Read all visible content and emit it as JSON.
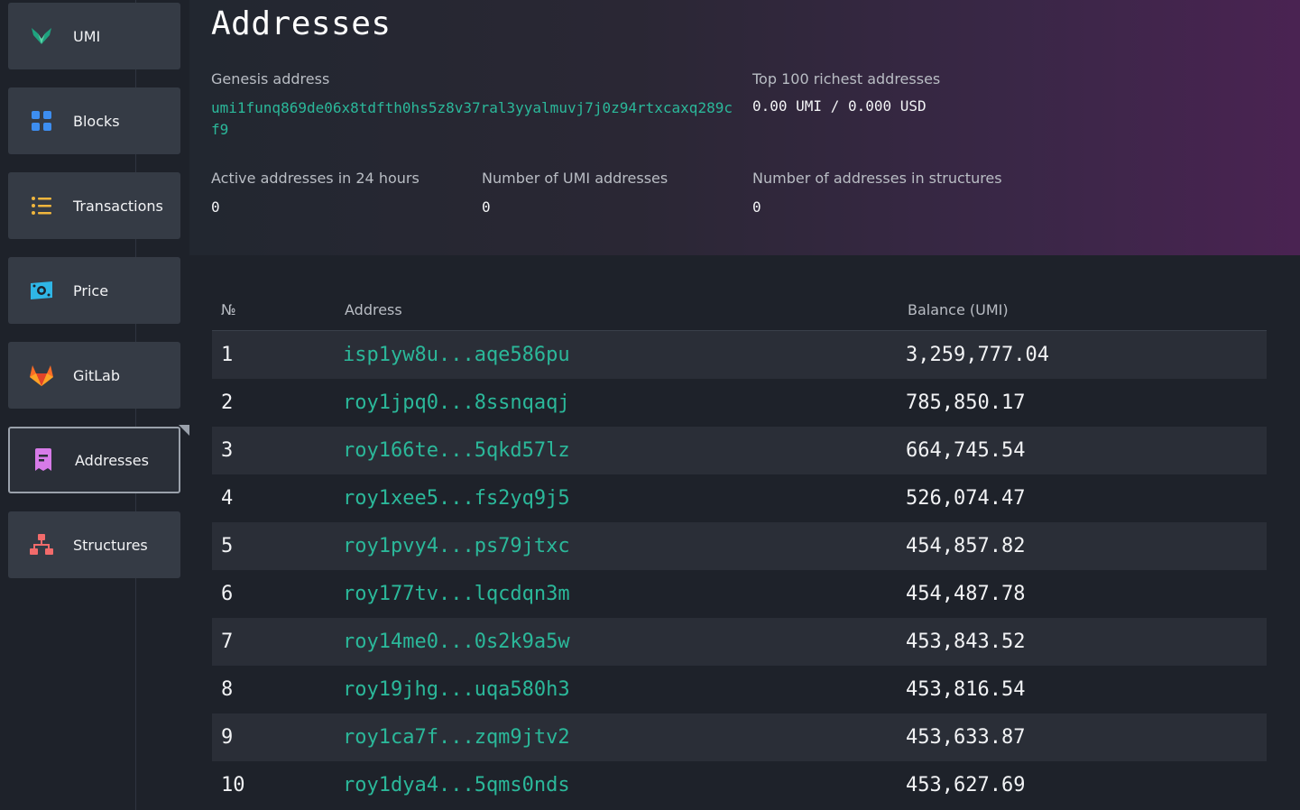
{
  "sidebar": {
    "items": [
      {
        "label": "UMI",
        "icon": "umi-logo-icon",
        "active": false
      },
      {
        "label": "Blocks",
        "icon": "grid-icon",
        "active": false
      },
      {
        "label": "Transactions",
        "icon": "list-icon",
        "active": false
      },
      {
        "label": "Price",
        "icon": "banknote-icon",
        "active": false
      },
      {
        "label": "GitLab",
        "icon": "gitlab-icon",
        "active": false
      },
      {
        "label": "Addresses",
        "icon": "receipt-icon",
        "active": true
      },
      {
        "label": "Structures",
        "icon": "sitemap-icon",
        "active": false
      }
    ]
  },
  "header": {
    "title": "Addresses",
    "genesis_label": "Genesis address",
    "genesis_value": "umi1funq869de06x8tdfth0hs5z8v37ral3yyalmuvj7j0z94rtxcaxq289cf9",
    "richest_label": "Top 100 richest addresses",
    "richest_value": "0.00 UMI / 0.000 USD",
    "active_label": "Active addresses in 24 hours",
    "active_value": "0",
    "umi_count_label": "Number of UMI addresses",
    "umi_count_value": "0",
    "structures_label": "Number of addresses in structures",
    "structures_value": "0"
  },
  "table": {
    "columns": [
      "№",
      "Address",
      "Balance (UMI)"
    ],
    "rows": [
      {
        "num": "1",
        "address": "isp1yw8u...aqe586pu",
        "balance": "3,259,777.04"
      },
      {
        "num": "2",
        "address": "roy1jpq0...8ssnqaqj",
        "balance": "785,850.17"
      },
      {
        "num": "3",
        "address": "roy166te...5qkd57lz",
        "balance": "664,745.54"
      },
      {
        "num": "4",
        "address": "roy1xee5...fs2yq9j5",
        "balance": "526,074.47"
      },
      {
        "num": "5",
        "address": "roy1pvy4...ps79jtxc",
        "balance": "454,857.82"
      },
      {
        "num": "6",
        "address": "roy177tv...lqcdqn3m",
        "balance": "454,487.78"
      },
      {
        "num": "7",
        "address": "roy14me0...0s2k9a5w",
        "balance": "453,843.52"
      },
      {
        "num": "8",
        "address": "roy19jhg...uqa580h3",
        "balance": "453,816.54"
      },
      {
        "num": "9",
        "address": "roy1ca7f...zqm9jtv2",
        "balance": "453,633.87"
      },
      {
        "num": "10",
        "address": "roy1dya4...5qms0nds",
        "balance": "453,627.69"
      }
    ]
  },
  "colors": {
    "accent": "#2bb89a",
    "background": "#1e222a",
    "nav_bg": "#353b45",
    "row_stripe": "#2a2e37"
  }
}
